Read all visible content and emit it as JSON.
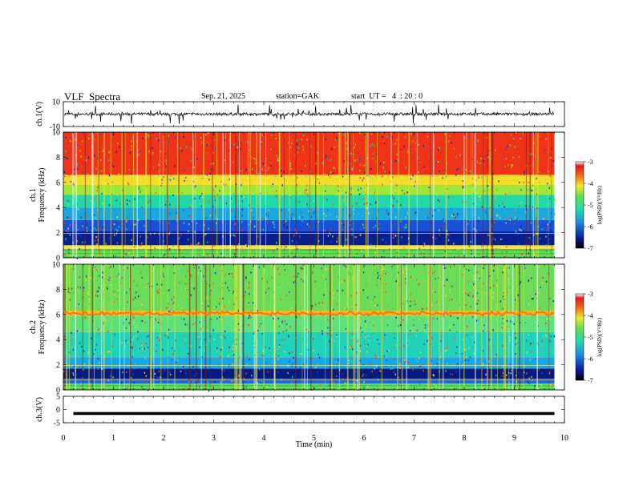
{
  "header": {
    "title": "VLF  Spectra",
    "date": "Sep. 21, 2025",
    "station": "station=GAK",
    "start": "start  UT =   4  : 20 : 0"
  },
  "chart_data": [
    {
      "type": "line",
      "name": "ch1-waveform",
      "ylabel": "ch.1(V)",
      "ylim": [
        -10,
        10
      ],
      "yticks": [
        "10",
        "-10"
      ],
      "xlim": [
        0,
        10
      ],
      "baseline_v": 0,
      "noise_amplitude_v": 2,
      "spike_amplitude_v": 8
    },
    {
      "type": "heatmap",
      "name": "ch1-spectrogram",
      "ylabel": "ch.1\nFrequency  (kHz)",
      "ylim": [
        0,
        10
      ],
      "yticks": [
        "0",
        "2",
        "4",
        "6",
        "8",
        "10"
      ],
      "xlim": [
        0,
        9.8
      ],
      "bands_khz": [
        {
          "from": 0.0,
          "to": 0.7,
          "color": "#3ed04a"
        },
        {
          "from": 0.7,
          "to": 1.0,
          "color": "#f0e050"
        },
        {
          "from": 1.0,
          "to": 2.1,
          "color": "#08208e"
        },
        {
          "from": 2.1,
          "to": 3.0,
          "color": "#1a4fd8"
        },
        {
          "from": 3.0,
          "to": 4.0,
          "color": "#1aa7e0"
        },
        {
          "from": 4.0,
          "to": 5.0,
          "color": "#22d8a8"
        },
        {
          "from": 5.0,
          "to": 5.8,
          "color": "#9ee63a"
        },
        {
          "from": 5.8,
          "to": 6.6,
          "color": "#f2de2a"
        },
        {
          "from": 6.6,
          "to": 10.0,
          "color": "#ee3318"
        }
      ],
      "colorbar": {
        "label": "log(PSD)(V²/Hz)",
        "range": [
          -7,
          -3
        ],
        "ticks": [
          "-3",
          "-4",
          "-5",
          "-6",
          "-7"
        ]
      }
    },
    {
      "type": "heatmap",
      "name": "ch2-spectrogram",
      "ylabel": "ch.2\nFrequency  (kHz)",
      "ylim": [
        0,
        10
      ],
      "yticks": [
        "0",
        "2",
        "4",
        "6",
        "8",
        "10"
      ],
      "xlim": [
        0,
        9.8
      ],
      "bands_khz": [
        {
          "from": 0.0,
          "to": 0.5,
          "color": "#3ed04a"
        },
        {
          "from": 0.5,
          "to": 0.9,
          "color": "#1c6ad8"
        },
        {
          "from": 0.9,
          "to": 1.7,
          "color": "#061a80"
        },
        {
          "from": 1.7,
          "to": 2.6,
          "color": "#1aa7e0"
        },
        {
          "from": 2.6,
          "to": 4.6,
          "color": "#22d2b8"
        },
        {
          "from": 4.6,
          "to": 5.9,
          "color": "#5ee07a"
        },
        {
          "from": 5.9,
          "to": 6.3,
          "color": "#f0b820"
        },
        {
          "from": 6.3,
          "to": 10.0,
          "color": "#6cdc58"
        }
      ],
      "line_khz": 6.1,
      "colorbar": {
        "label": "log(PSD)(V²/Hz)",
        "range": [
          -7,
          -3
        ],
        "ticks": [
          "-3",
          "-4",
          "-5",
          "-6",
          "-7"
        ]
      }
    },
    {
      "type": "line",
      "name": "ch3-waveform",
      "ylabel": "ch.3(V)",
      "ylim": [
        -5,
        5
      ],
      "yticks": [
        "5",
        "0",
        "-5"
      ],
      "xlim": [
        0,
        10
      ],
      "baseline_v": -1.5
    }
  ],
  "xaxis": {
    "label": "Time  (min)",
    "ticks": [
      "0",
      "1",
      "2",
      "3",
      "4",
      "5",
      "6",
      "7",
      "8",
      "9",
      "10"
    ]
  }
}
